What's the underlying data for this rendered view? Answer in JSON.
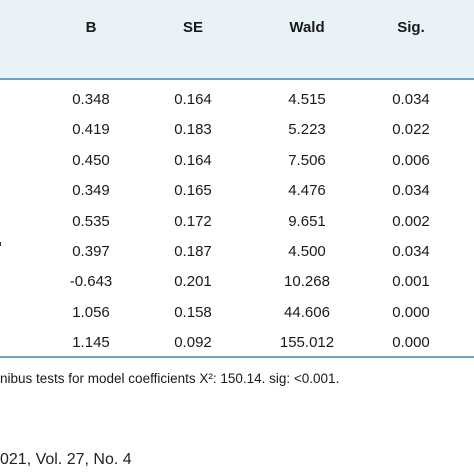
{
  "table": {
    "columns": [
      "B",
      "SE",
      "Wald",
      "Sig."
    ],
    "rows": [
      [
        "0.348",
        "0.164",
        "4.515",
        "0.034"
      ],
      [
        "0.419",
        "0.183",
        "5.223",
        "0.022"
      ],
      [
        "0.450",
        "0.164",
        "7.506",
        "0.006"
      ],
      [
        "0.349",
        "0.165",
        "4.476",
        "0.034"
      ],
      [
        "0.535",
        "0.172",
        "9.651",
        "0.002"
      ],
      [
        "0.397",
        "0.187",
        "4.500",
        "0.034"
      ],
      [
        "-0.643",
        "0.201",
        "10.268",
        "0.001"
      ],
      [
        "1.056",
        "0.158",
        "44.606",
        "0.000"
      ],
      [
        "1.145",
        "0.092",
        "155.012",
        "0.000"
      ]
    ]
  },
  "footnote": "nibus tests for model coefficients X²: 150.14. sig: <0.001.",
  "citation": "021, Vol. 27, No. 4",
  "colors": {
    "header_band": "#e9f2f7",
    "rule": "#6fa3c4"
  }
}
